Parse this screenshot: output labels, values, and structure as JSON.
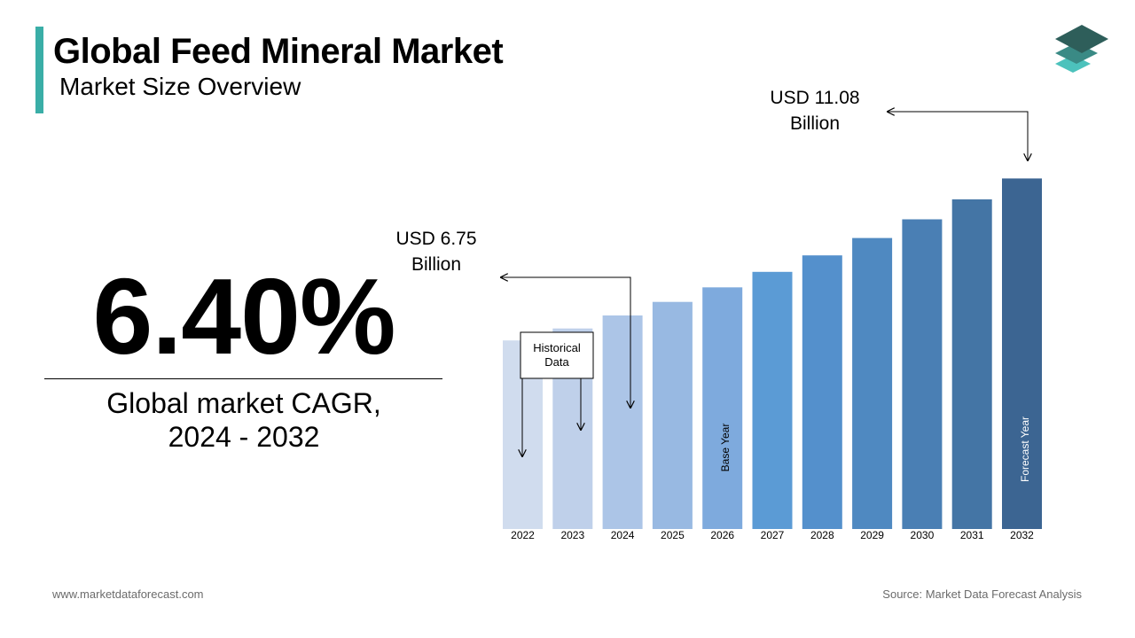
{
  "header": {
    "title": "Global Feed Mineral Market",
    "subtitle": "Market Size Overview"
  },
  "cagr": {
    "value": "6.40%",
    "label_line1": "Global market CAGR,",
    "label_line2": "2024 - 2032"
  },
  "callouts": {
    "start_line1": "USD 6.75",
    "start_line2": "Billion",
    "end_line1": "USD 11.08",
    "end_line2": "Billion",
    "historical_line1": "Historical",
    "historical_line2": "Data",
    "base_year": "Base Year",
    "forecast_year": "Forecast Year"
  },
  "footer": {
    "website": "www.marketdataforecast.com",
    "source": "Source: Market Data Forecast Analysis"
  },
  "colors": {
    "accent": "#3aaea7",
    "bars": [
      "#d0dcee",
      "#bfd0ea",
      "#acc5e7",
      "#98b9e2",
      "#7eaadd",
      "#5b9bd5",
      "#5490cc",
      "#4f89c1",
      "#4a7fb4",
      "#4475a5",
      "#3c6592"
    ]
  },
  "chart_data": {
    "type": "bar",
    "categories": [
      "2022",
      "2023",
      "2024",
      "2025",
      "2026",
      "2027",
      "2028",
      "2029",
      "2030",
      "2031",
      "2032"
    ],
    "values": [
      5.96,
      6.34,
      6.75,
      7.18,
      7.64,
      8.13,
      8.65,
      9.2,
      9.79,
      10.42,
      11.08
    ],
    "ylim": [
      0,
      12
    ],
    "grid": false,
    "legend": "none",
    "annotations": [
      {
        "category": "2024",
        "text": "USD 6.75 Billion"
      },
      {
        "category": "2032",
        "text": "USD 11.08 Billion"
      },
      {
        "category": "2026",
        "text": "Base Year"
      },
      {
        "category": "2032",
        "text": "Forecast Year"
      },
      {
        "category": "2022-2023",
        "text": "Historical Data"
      }
    ]
  }
}
